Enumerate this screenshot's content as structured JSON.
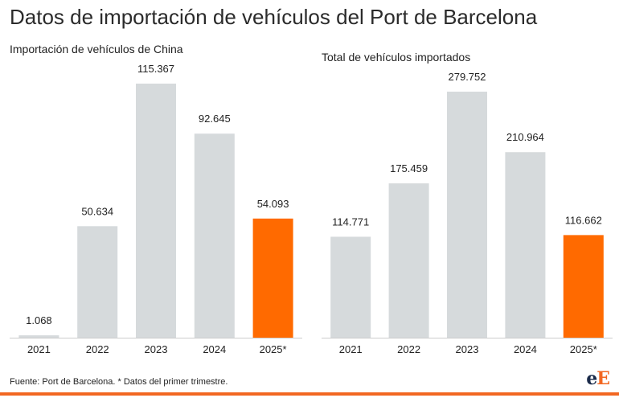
{
  "page": {
    "title": "Datos de importación de vehículos del Port de Barcelona",
    "footer": "Fuente: Port de Barcelona. * Datos del primer trimestre.",
    "logo_e1": "e",
    "logo_e2": "E"
  },
  "colors": {
    "bar": "#d6dadc",
    "highlight": "#ff6a00",
    "axis": "#cccccc",
    "label": "#222222"
  },
  "chart_data": [
    {
      "type": "bar",
      "title": "Importación de vehículos de China",
      "categories": [
        "2021",
        "2022",
        "2023",
        "2024",
        "2025*"
      ],
      "values": [
        1068,
        50634,
        115367,
        92645,
        54093
      ],
      "value_labels": [
        "1.068",
        "50.634",
        "115.367",
        "92.645",
        "54.093"
      ],
      "highlight_index": 4,
      "ylim": [
        0,
        115367
      ],
      "grid": false
    },
    {
      "type": "bar",
      "title": "Total de vehículos importados",
      "categories": [
        "2021",
        "2022",
        "2023",
        "2024",
        "2025*"
      ],
      "values": [
        114771,
        175459,
        279752,
        210964,
        116662
      ],
      "value_labels": [
        "114.771",
        "175.459",
        "279.752",
        "210.964",
        "116.662"
      ],
      "highlight_index": 4,
      "ylim": [
        0,
        279752
      ],
      "grid": false
    }
  ]
}
